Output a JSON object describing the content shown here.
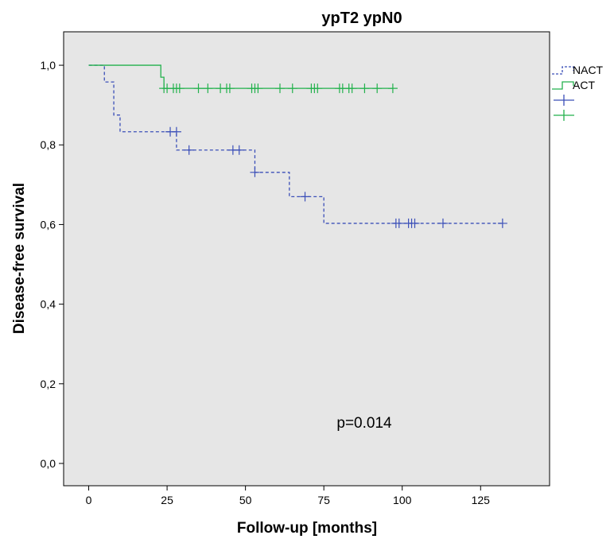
{
  "chart_data": {
    "type": "line",
    "title": "ypT2 ypN0",
    "xlabel": "Follow-up [months]",
    "ylabel": "Disease-free survival",
    "xlim": [
      -8,
      147
    ],
    "ylim": [
      -0.056,
      1.084
    ],
    "x_ticks": [
      0,
      25,
      50,
      75,
      100,
      125
    ],
    "x_tick_labels": [
      "0",
      "25",
      "50",
      "75",
      "100",
      "125"
    ],
    "y_ticks": [
      0.0,
      0.2,
      0.4,
      0.6,
      0.8,
      1.0
    ],
    "y_tick_labels": [
      "0,0",
      "0,2",
      "0,4",
      "0,6",
      "0,8",
      "1,0"
    ],
    "grid": false,
    "legend_position": "right",
    "annotation": "p=0.014",
    "series": [
      {
        "name": "NACT",
        "color": "#3b4fb8",
        "dash": true,
        "steps": [
          [
            0,
            1.0
          ],
          [
            5,
            0.958
          ],
          [
            8,
            0.875
          ],
          [
            10,
            0.833
          ],
          [
            28,
            0.787
          ],
          [
            53,
            0.731
          ],
          [
            64,
            0.67
          ],
          [
            75,
            0.603
          ],
          [
            132,
            0.603
          ]
        ],
        "censored": [
          [
            26,
            0.833
          ],
          [
            28,
            0.833
          ],
          [
            32,
            0.787
          ],
          [
            46,
            0.787
          ],
          [
            48,
            0.787
          ],
          [
            53,
            0.731
          ],
          [
            69,
            0.67
          ],
          [
            98,
            0.603
          ],
          [
            99,
            0.603
          ],
          [
            102,
            0.603
          ],
          [
            103,
            0.603
          ],
          [
            104,
            0.603
          ],
          [
            113,
            0.603
          ],
          [
            132,
            0.603
          ]
        ]
      },
      {
        "name": "ACT",
        "color": "#22b14c",
        "dash": false,
        "steps": [
          [
            0,
            1.0
          ],
          [
            23,
            0.97
          ],
          [
            24,
            0.942
          ],
          [
            97,
            0.942
          ]
        ],
        "censored": [
          [
            24,
            0.942
          ],
          [
            25,
            0.942
          ],
          [
            27,
            0.942
          ],
          [
            28,
            0.942
          ],
          [
            29,
            0.942
          ],
          [
            35,
            0.942
          ],
          [
            38,
            0.942
          ],
          [
            42,
            0.942
          ],
          [
            44,
            0.942
          ],
          [
            45,
            0.942
          ],
          [
            52,
            0.942
          ],
          [
            53,
            0.942
          ],
          [
            54,
            0.942
          ],
          [
            61,
            0.942
          ],
          [
            65,
            0.942
          ],
          [
            71,
            0.942
          ],
          [
            72,
            0.942
          ],
          [
            73,
            0.942
          ],
          [
            80,
            0.942
          ],
          [
            81,
            0.942
          ],
          [
            83,
            0.942
          ],
          [
            84,
            0.942
          ],
          [
            88,
            0.942
          ],
          [
            92,
            0.942
          ],
          [
            97,
            0.942
          ]
        ]
      }
    ],
    "legend_entries": [
      {
        "label": "NACT",
        "kind": "dashed-step",
        "color": "#3b4fb8"
      },
      {
        "label": "ACT",
        "kind": "solid-step",
        "color": "#22b14c"
      },
      {
        "label": "",
        "kind": "censor",
        "color": "#3b4fb8"
      },
      {
        "label": "",
        "kind": "censor",
        "color": "#22b14c"
      }
    ],
    "colors": {
      "plot_background": "#e6e6e6",
      "frame": "#000000"
    }
  }
}
